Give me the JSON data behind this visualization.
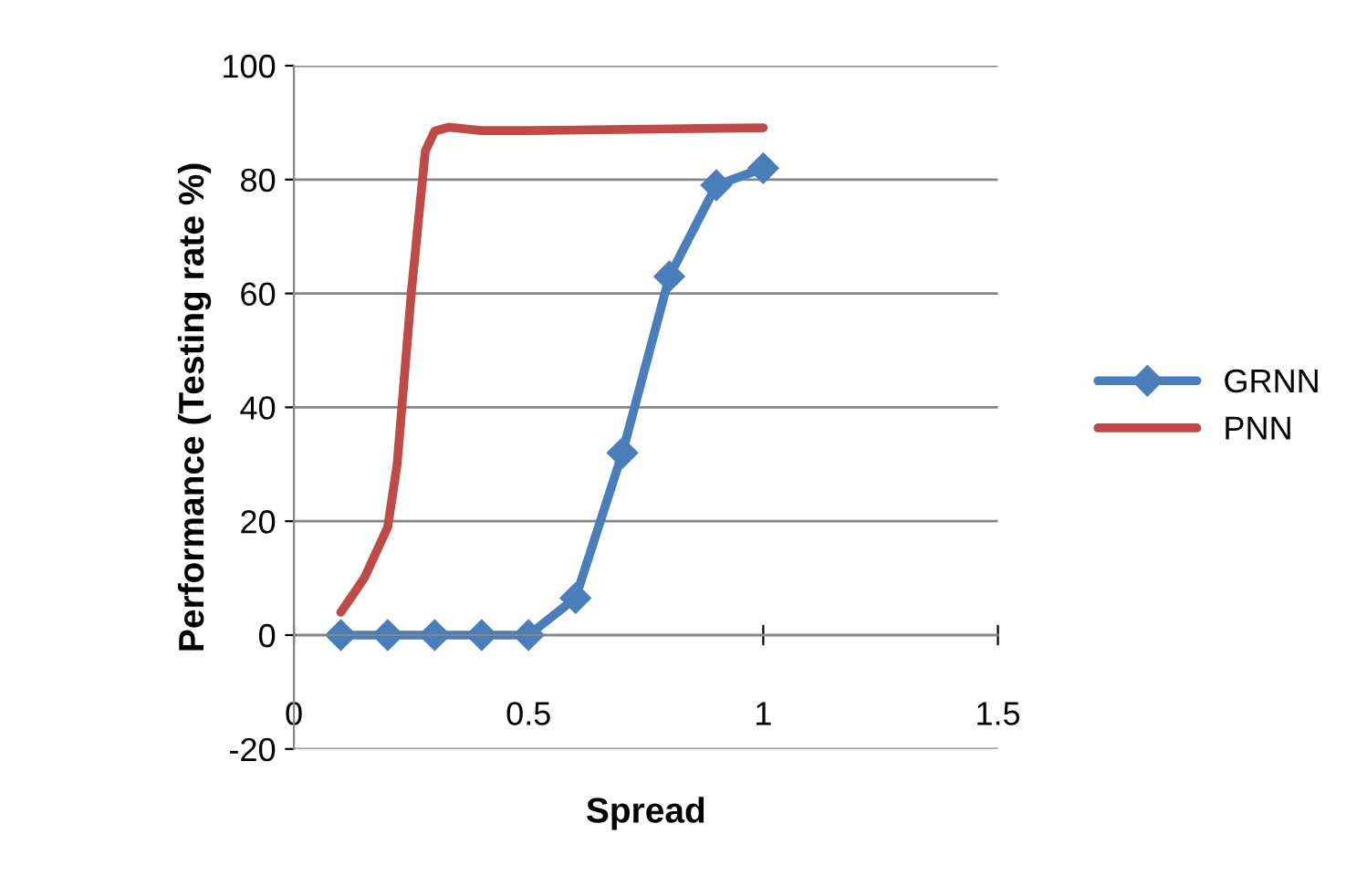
{
  "chart_data": {
    "type": "line",
    "xlabel": "Spread",
    "ylabel": "Performance (Testing rate %)",
    "xlim": [
      0,
      1.5
    ],
    "xticks": [
      0,
      0.5,
      1,
      1.5
    ],
    "ylim": [
      -20,
      100
    ],
    "yticks": [
      -20,
      0,
      20,
      40,
      60,
      80,
      100
    ],
    "grid": "y",
    "legend": "right",
    "line_style": "solid",
    "series": [
      {
        "name": "GRNN",
        "color": "#4a7ebb",
        "marker": "diamond",
        "x": [
          0.1,
          0.2,
          0.3,
          0.4,
          0.5,
          0.6,
          0.7,
          0.8,
          0.9,
          1.0
        ],
        "values": [
          0,
          0,
          0,
          0,
          0,
          6.5,
          32,
          63,
          79,
          82
        ]
      },
      {
        "name": "PNN",
        "color": "#be4b48",
        "marker": "none",
        "x": [
          0.1,
          0.15,
          0.2,
          0.22,
          0.25,
          0.28,
          0.3,
          0.33,
          0.4,
          0.5,
          0.6,
          0.7,
          0.8,
          0.9,
          1.0
        ],
        "values": [
          4,
          10,
          19,
          30,
          60,
          85,
          88.5,
          89.2,
          88.6,
          88.6,
          88.7,
          88.8,
          88.9,
          89,
          89.1
        ]
      }
    ]
  }
}
